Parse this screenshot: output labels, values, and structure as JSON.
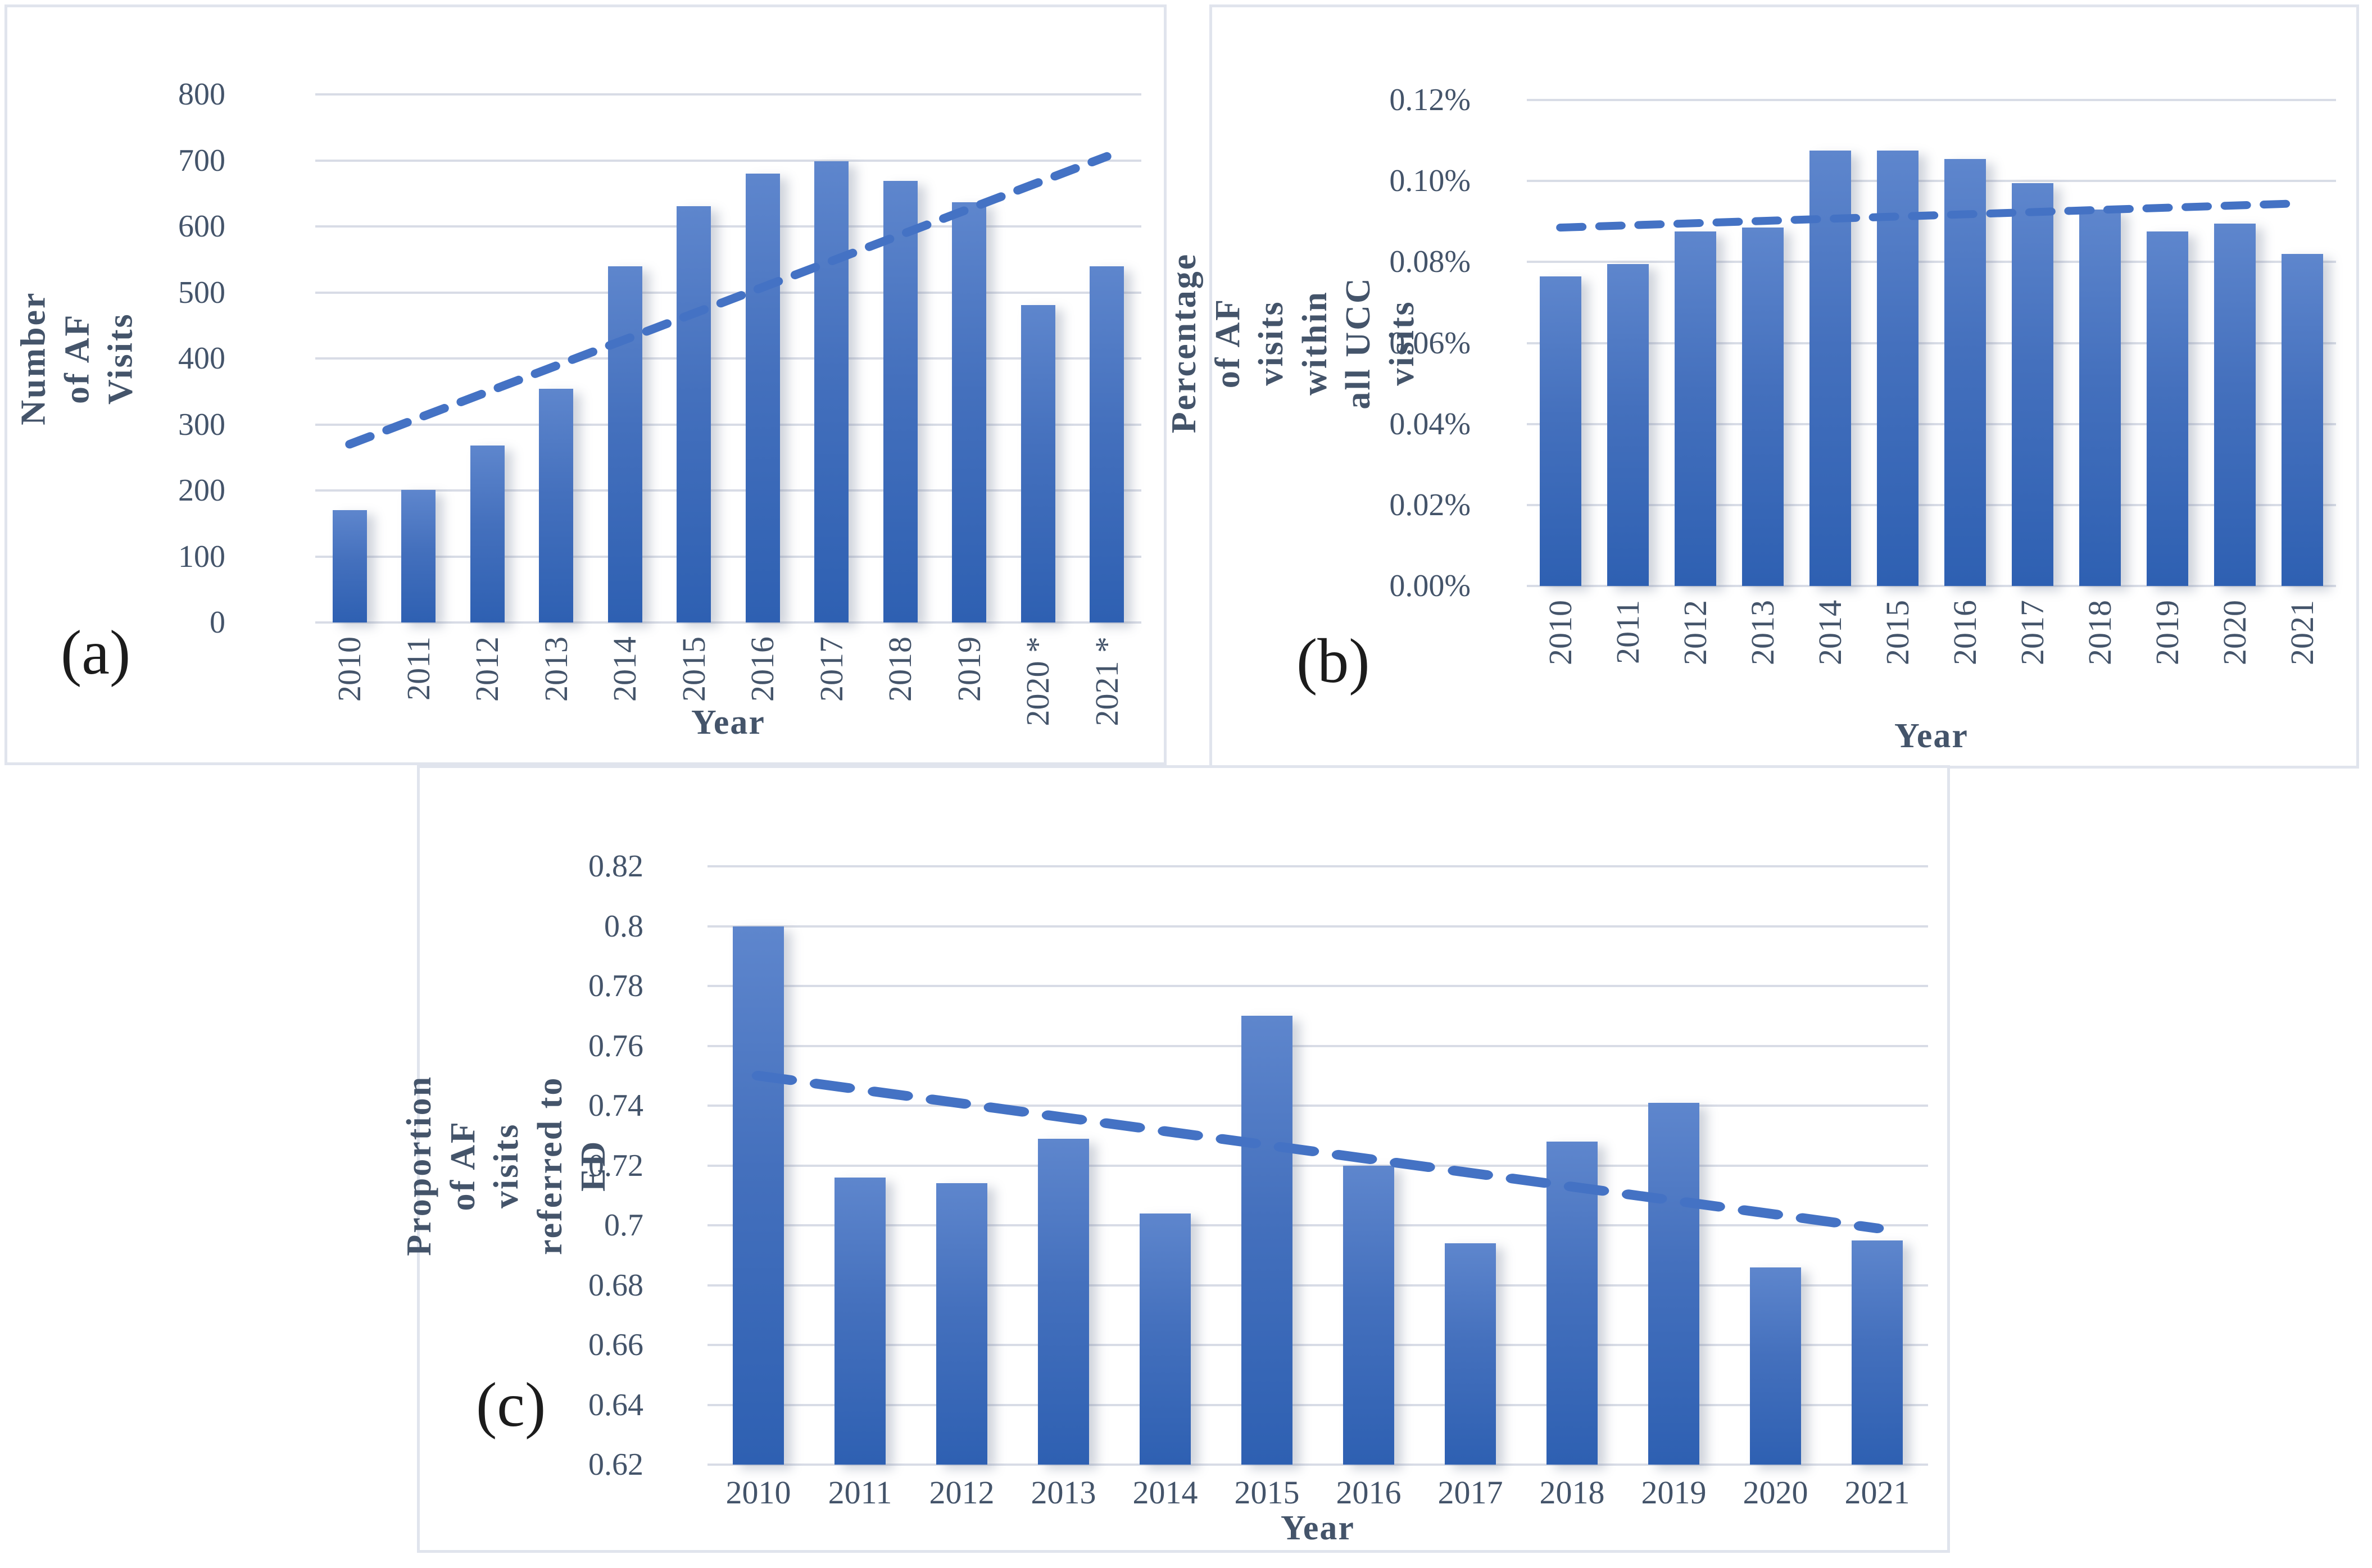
{
  "panels": [
    {
      "letter": "(a)"
    },
    {
      "letter": "(b)"
    },
    {
      "letter": "(c)"
    }
  ],
  "colors": {
    "bar_gradient_top": "#5e86cd",
    "bar_gradient_bottom": "#2e60b2",
    "trendline": "#4472c4",
    "axis_text": "#44546a",
    "gridline": "#d8dce6",
    "panel_border": "#e0e4ed",
    "panel_letter": "#1c1c1c"
  },
  "chart_data": [
    {
      "type": "bar",
      "title": "",
      "categories": [
        "2010",
        "2011",
        "2012",
        "2013",
        "2014",
        "2015",
        "2016",
        "2017",
        "2018",
        "2019",
        "2020 *",
        "2021 *"
      ],
      "values": [
        170,
        201,
        268,
        354,
        540,
        631,
        680,
        699,
        669,
        637,
        481,
        540
      ],
      "xlabel": "Year",
      "ylabel": "Number of AF Visits",
      "ylim": [
        0,
        800
      ],
      "yticks": [
        0,
        100,
        200,
        300,
        400,
        500,
        600,
        700,
        800
      ],
      "ytick_labels": [
        "0",
        "100",
        "200",
        "300",
        "400",
        "500",
        "600",
        "700",
        "800"
      ],
      "grid": true,
      "legend": "none",
      "trendline": {
        "style": "dashed",
        "start": 270,
        "end": 706
      }
    },
    {
      "type": "bar",
      "title": "",
      "categories": [
        "2010",
        "2011",
        "2012",
        "2013",
        "2014",
        "2015",
        "2016",
        "2017",
        "2018",
        "2019",
        "2020",
        "2021"
      ],
      "values": [
        0.0765,
        0.0795,
        0.0875,
        0.0885,
        0.1075,
        0.1075,
        0.1055,
        0.0995,
        0.093,
        0.0875,
        0.0895,
        0.082
      ],
      "xlabel": "Year",
      "ylabel": "Percentage of AF visits within\nall UCC visits",
      "ylim": [
        0,
        0.12
      ],
      "yticks": [
        0,
        0.02,
        0.04,
        0.06,
        0.08,
        0.1,
        0.12
      ],
      "ytick_labels": [
        "0.00%",
        "0.02%",
        "0.04%",
        "0.06%",
        "0.08%",
        "0.10%",
        "0.12%"
      ],
      "grid": true,
      "legend": "none",
      "trendline": {
        "style": "dashed",
        "start": 0.0885,
        "end": 0.0945
      }
    },
    {
      "type": "bar",
      "title": "",
      "categories": [
        "2010",
        "2011",
        "2012",
        "2013",
        "2014",
        "2015",
        "2016",
        "2017",
        "2018",
        "2019",
        "2020",
        "2021"
      ],
      "values": [
        0.8,
        0.716,
        0.714,
        0.729,
        0.704,
        0.77,
        0.72,
        0.694,
        0.728,
        0.741,
        0.686,
        0.695
      ],
      "xlabel": "Year",
      "ylabel": "Proportion of AF visits\nreferred to ED",
      "ylim": [
        0.62,
        0.82
      ],
      "yticks": [
        0.62,
        0.64,
        0.66,
        0.68,
        0.7,
        0.72,
        0.74,
        0.76,
        0.78,
        0.8,
        0.82
      ],
      "ytick_labels": [
        "0.62",
        "0.64",
        "0.66",
        "0.68",
        "0.7",
        "0.72",
        "0.74",
        "0.76",
        "0.78",
        "0.8",
        "0.82"
      ],
      "grid": true,
      "legend": "none",
      "trendline": {
        "style": "dashed",
        "start": 0.75,
        "end": 0.699
      }
    }
  ]
}
